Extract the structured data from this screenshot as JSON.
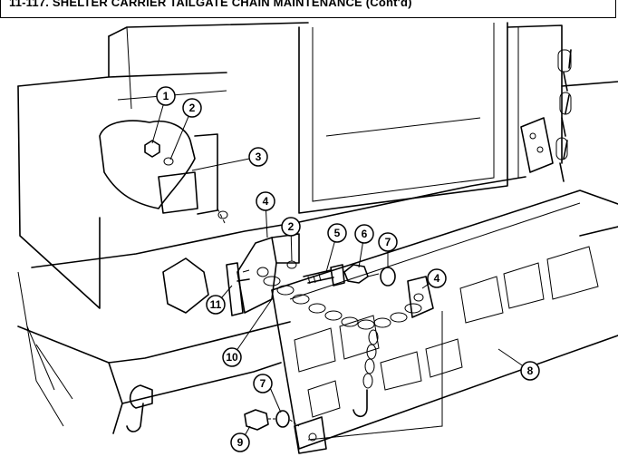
{
  "title": "11-117. SHELTER CARRIER TAILGATE CHAIN MAINTENANCE (Cont'd)",
  "callouts": [
    "1",
    "2",
    "3",
    "4",
    "2",
    "5",
    "6",
    "7",
    "4",
    "11",
    "10",
    "8",
    "7",
    "9"
  ]
}
